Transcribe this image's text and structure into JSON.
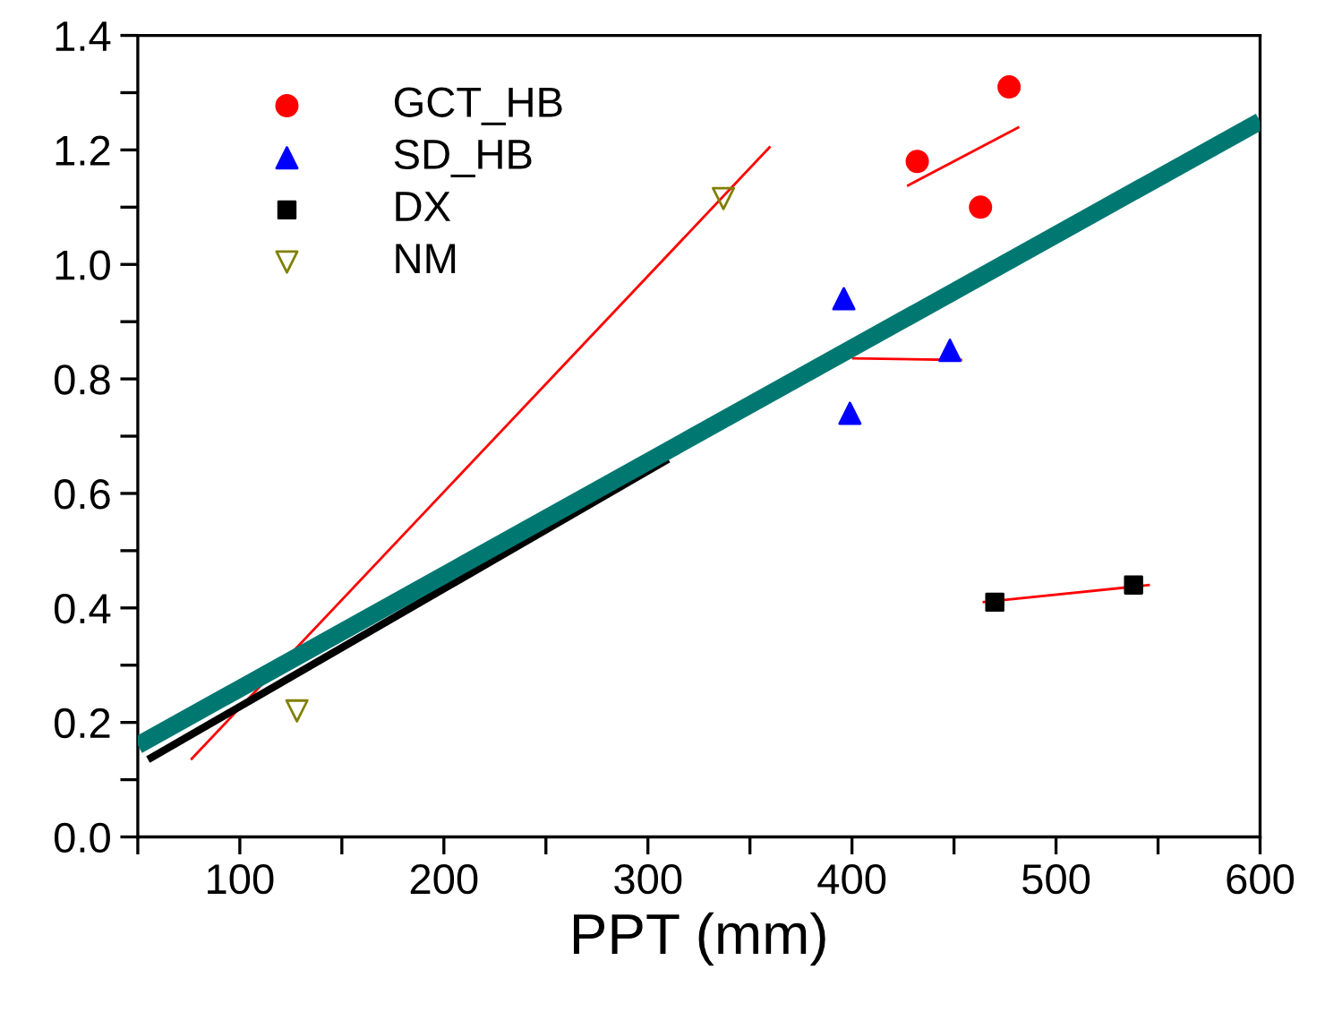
{
  "chart_data": {
    "type": "scatter",
    "xlabel": "PPT (mm)",
    "xlim": [
      50,
      600
    ],
    "ylim": [
      0,
      1.4
    ],
    "xticks": [
      {
        "value": 50,
        "label": null
      },
      100,
      {
        "value": 150,
        "label": null
      },
      200,
      {
        "value": 250,
        "label": null
      },
      300,
      {
        "value": 350,
        "label": null
      },
      400,
      {
        "value": 450,
        "label": null
      },
      500,
      {
        "value": 550,
        "label": null
      },
      600
    ],
    "yticks": [
      {
        "value": 0,
        "label": "0.0"
      },
      {
        "value": 0.1,
        "label": null
      },
      0.2,
      {
        "value": 0.3,
        "label": null
      },
      0.4,
      {
        "value": 0.5,
        "label": null
      },
      0.6,
      {
        "value": 0.7,
        "label": null
      },
      0.8,
      {
        "value": 0.9,
        "label": null
      },
      {
        "value": 1.0,
        "label": "1.0"
      },
      {
        "value": 1.1,
        "label": null
      },
      1.2,
      {
        "value": 1.3,
        "label": null
      },
      1.4
    ],
    "grid": false,
    "legend": "top left",
    "series": [
      {
        "name": "GCT_HB",
        "marker": "circle",
        "color": "#ff0000",
        "x": [
          432,
          477,
          463
        ],
        "values": [
          1.18,
          1.31,
          1.1
        ]
      },
      {
        "name": "SD_HB",
        "marker": "triangle",
        "color": "#0000ff",
        "x": [
          396,
          448,
          399
        ],
        "values": [
          0.94,
          0.85,
          0.74
        ]
      },
      {
        "name": "DX",
        "marker": "square",
        "color": "#000000",
        "x": [
          470,
          538
        ],
        "values": [
          0.41,
          0.44
        ]
      },
      {
        "name": "NM",
        "marker": "triangle_down",
        "color": "#808000",
        "x": [
          128,
          337
        ],
        "values": [
          0.22,
          1.115
        ]
      },
      {
        "type": "line",
        "color": "#ff0000",
        "x": [
          76,
          360
        ],
        "values": [
          0.135,
          1.206
        ]
      },
      {
        "type": "line",
        "color": "#ff0000",
        "x": [
          427,
          482
        ],
        "values": [
          1.137,
          1.24
        ]
      },
      {
        "type": "line",
        "color": "#ff0000",
        "x": [
          400,
          454
        ],
        "values": [
          0.836,
          0.833
        ]
      },
      {
        "type": "line",
        "color": "#ff0000",
        "x": [
          464,
          546
        ],
        "values": [
          0.41,
          0.44
        ]
      },
      {
        "type": "line",
        "color": "#000000",
        "x": [
          55,
          310
        ],
        "values": [
          0.135,
          0.66
        ]
      },
      {
        "type": "line",
        "color": "#007872",
        "x": [
          50,
          600
        ],
        "values": [
          0.16,
          1.25
        ]
      }
    ]
  }
}
